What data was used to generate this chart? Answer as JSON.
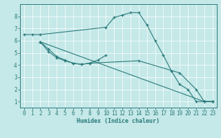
{
  "xlabel": "Humidex (Indice chaleur)",
  "background_color": "#c5e8e8",
  "line_color": "#2a7a7a",
  "grid_color": "#ffffff",
  "xlim": [
    -0.5,
    23.5
  ],
  "ylim": [
    0.5,
    9.0
  ],
  "xticks": [
    0,
    1,
    2,
    3,
    4,
    5,
    6,
    7,
    8,
    9,
    10,
    11,
    12,
    13,
    14,
    15,
    16,
    17,
    18,
    19,
    20,
    21,
    22,
    23
  ],
  "yticks": [
    1,
    2,
    3,
    4,
    5,
    6,
    7,
    8
  ],
  "lines": [
    {
      "x": [
        0,
        1,
        2,
        10,
        11,
        12,
        13,
        14,
        15,
        16,
        17,
        18,
        19,
        20,
        21,
        22,
        23
      ],
      "y": [
        6.5,
        6.5,
        6.5,
        7.1,
        7.9,
        8.1,
        8.3,
        8.3,
        7.3,
        6.0,
        4.8,
        3.5,
        2.4,
        2.0,
        1.0,
        1.0,
        1.0
      ]
    },
    {
      "x": [
        2,
        3,
        4,
        5,
        6,
        7,
        8,
        9,
        10
      ],
      "y": [
        5.9,
        5.3,
        4.7,
        4.4,
        4.15,
        4.05,
        4.15,
        4.4,
        4.8
      ]
    },
    {
      "x": [
        2,
        3,
        4,
        5,
        6,
        7,
        8,
        14,
        19,
        21,
        22,
        23
      ],
      "y": [
        5.9,
        5.1,
        4.6,
        4.35,
        4.15,
        4.05,
        4.15,
        4.35,
        3.35,
        2.0,
        1.0,
        1.0
      ]
    },
    {
      "x": [
        2,
        22,
        23
      ],
      "y": [
        5.9,
        1.0,
        1.0
      ]
    }
  ]
}
